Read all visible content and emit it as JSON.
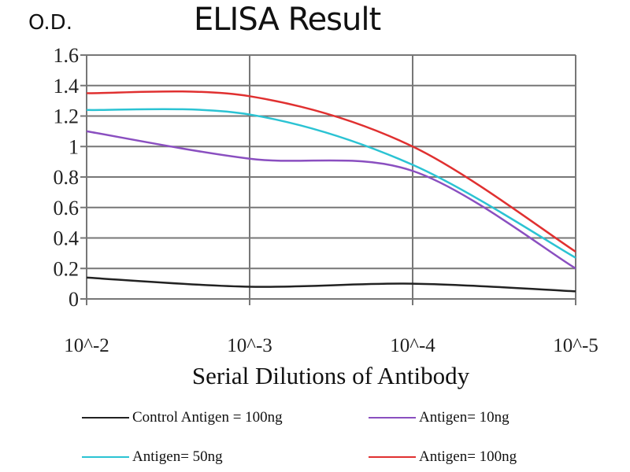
{
  "chart_data": {
    "type": "line",
    "title": "ELISA Result",
    "ylabel": "O.D.",
    "xlabel": "Serial Dilutions of Antibody",
    "categories": [
      "10^-2",
      "10^-3",
      "10^-4",
      "10^-5"
    ],
    "ylim": [
      0,
      1.6
    ],
    "yticks": [
      "0",
      "0.2",
      "0.4",
      "0.6",
      "0.8",
      "1",
      "1.2",
      "1.4",
      "1.6"
    ],
    "grid": true,
    "legend_position": "bottom",
    "series": [
      {
        "name": "Control Antigen = 100ng",
        "color": "#222222",
        "values": [
          0.14,
          0.08,
          0.1,
          0.05
        ]
      },
      {
        "name": "Antigen= 10ng",
        "color": "#8a4fc0",
        "values": [
          1.1,
          0.92,
          0.84,
          0.2
        ]
      },
      {
        "name": "Antigen= 50ng",
        "color": "#2bc3d3",
        "values": [
          1.24,
          1.21,
          0.88,
          0.27
        ]
      },
      {
        "name": "Antigen= 100ng",
        "color": "#e03030",
        "values": [
          1.35,
          1.33,
          1.0,
          0.31
        ]
      }
    ]
  }
}
